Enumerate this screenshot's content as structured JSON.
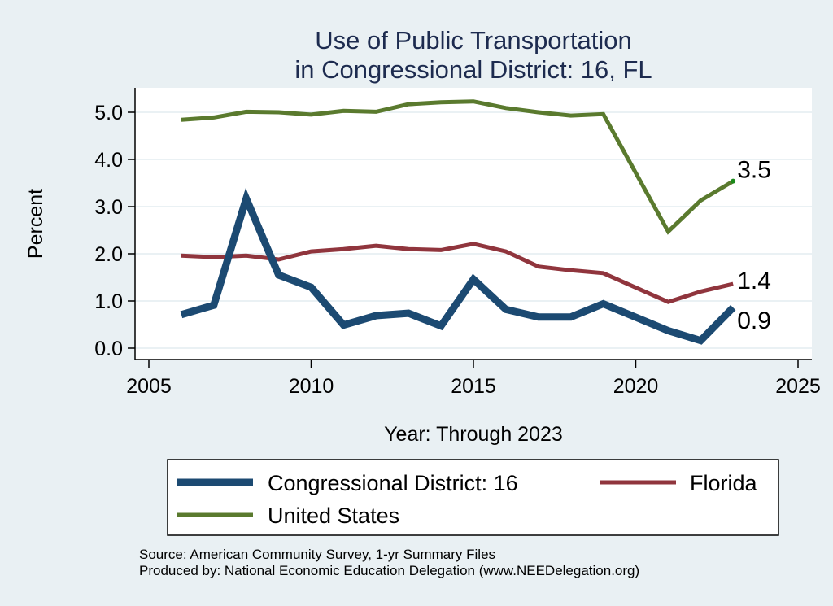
{
  "chart_data": {
    "type": "line",
    "title": [
      "Use of Public Transportation",
      "in Congressional District: 16, FL"
    ],
    "xlabel": "Year: Through 2023",
    "ylabel": "Percent",
    "xlim": [
      2004.5,
      2025.4
    ],
    "ylim": [
      -0.15,
      5.4
    ],
    "xticks": [
      2005,
      2010,
      2015,
      2020,
      2025
    ],
    "yticks": [
      0,
      1,
      2,
      3,
      4,
      5
    ],
    "ytick_labels": [
      "0.0",
      "1.0",
      "2.0",
      "3.0",
      "4.0",
      "5.0"
    ],
    "grid": true,
    "legend_position": "bottom",
    "x": [
      2006,
      2007,
      2008,
      2009,
      2010,
      2011,
      2012,
      2013,
      2014,
      2015,
      2016,
      2017,
      2018,
      2019,
      2021,
      2022,
      2023
    ],
    "series": [
      {
        "name": "United States",
        "color": "#5a7a2e",
        "values": [
          4.84,
          4.89,
          5.01,
          5.0,
          4.95,
          5.03,
          5.01,
          5.17,
          5.21,
          5.23,
          5.09,
          5.0,
          4.93,
          4.96,
          2.47,
          3.13,
          3.54
        ],
        "end_label": "3.5",
        "end_marker_color": "#1a8a1a"
      },
      {
        "name": "Florida",
        "color": "#90353d",
        "values": [
          1.96,
          1.93,
          1.96,
          1.88,
          2.05,
          2.1,
          2.17,
          2.1,
          2.08,
          2.21,
          2.05,
          1.73,
          1.65,
          1.59,
          0.98,
          1.2,
          1.36
        ],
        "end_label": "1.4"
      },
      {
        "name": "Congressional District: 16",
        "color": "#1c4a72",
        "values": [
          0.71,
          0.91,
          3.17,
          1.55,
          1.29,
          0.49,
          0.69,
          0.74,
          0.47,
          1.46,
          0.82,
          0.66,
          0.66,
          0.94,
          0.37,
          0.16,
          0.86
        ],
        "end_label": "0.9"
      }
    ],
    "legend": [
      {
        "label": "Congressional District: 16",
        "color": "#1c4a72"
      },
      {
        "label": "Florida",
        "color": "#90353d"
      },
      {
        "label": "United States",
        "color": "#5a7a2e"
      }
    ],
    "notes": [
      "Source: American Community Survey, 1-yr Summary Files",
      "Produced by: National Economic Education Delegation (www.NEEDelegation.org)"
    ]
  }
}
